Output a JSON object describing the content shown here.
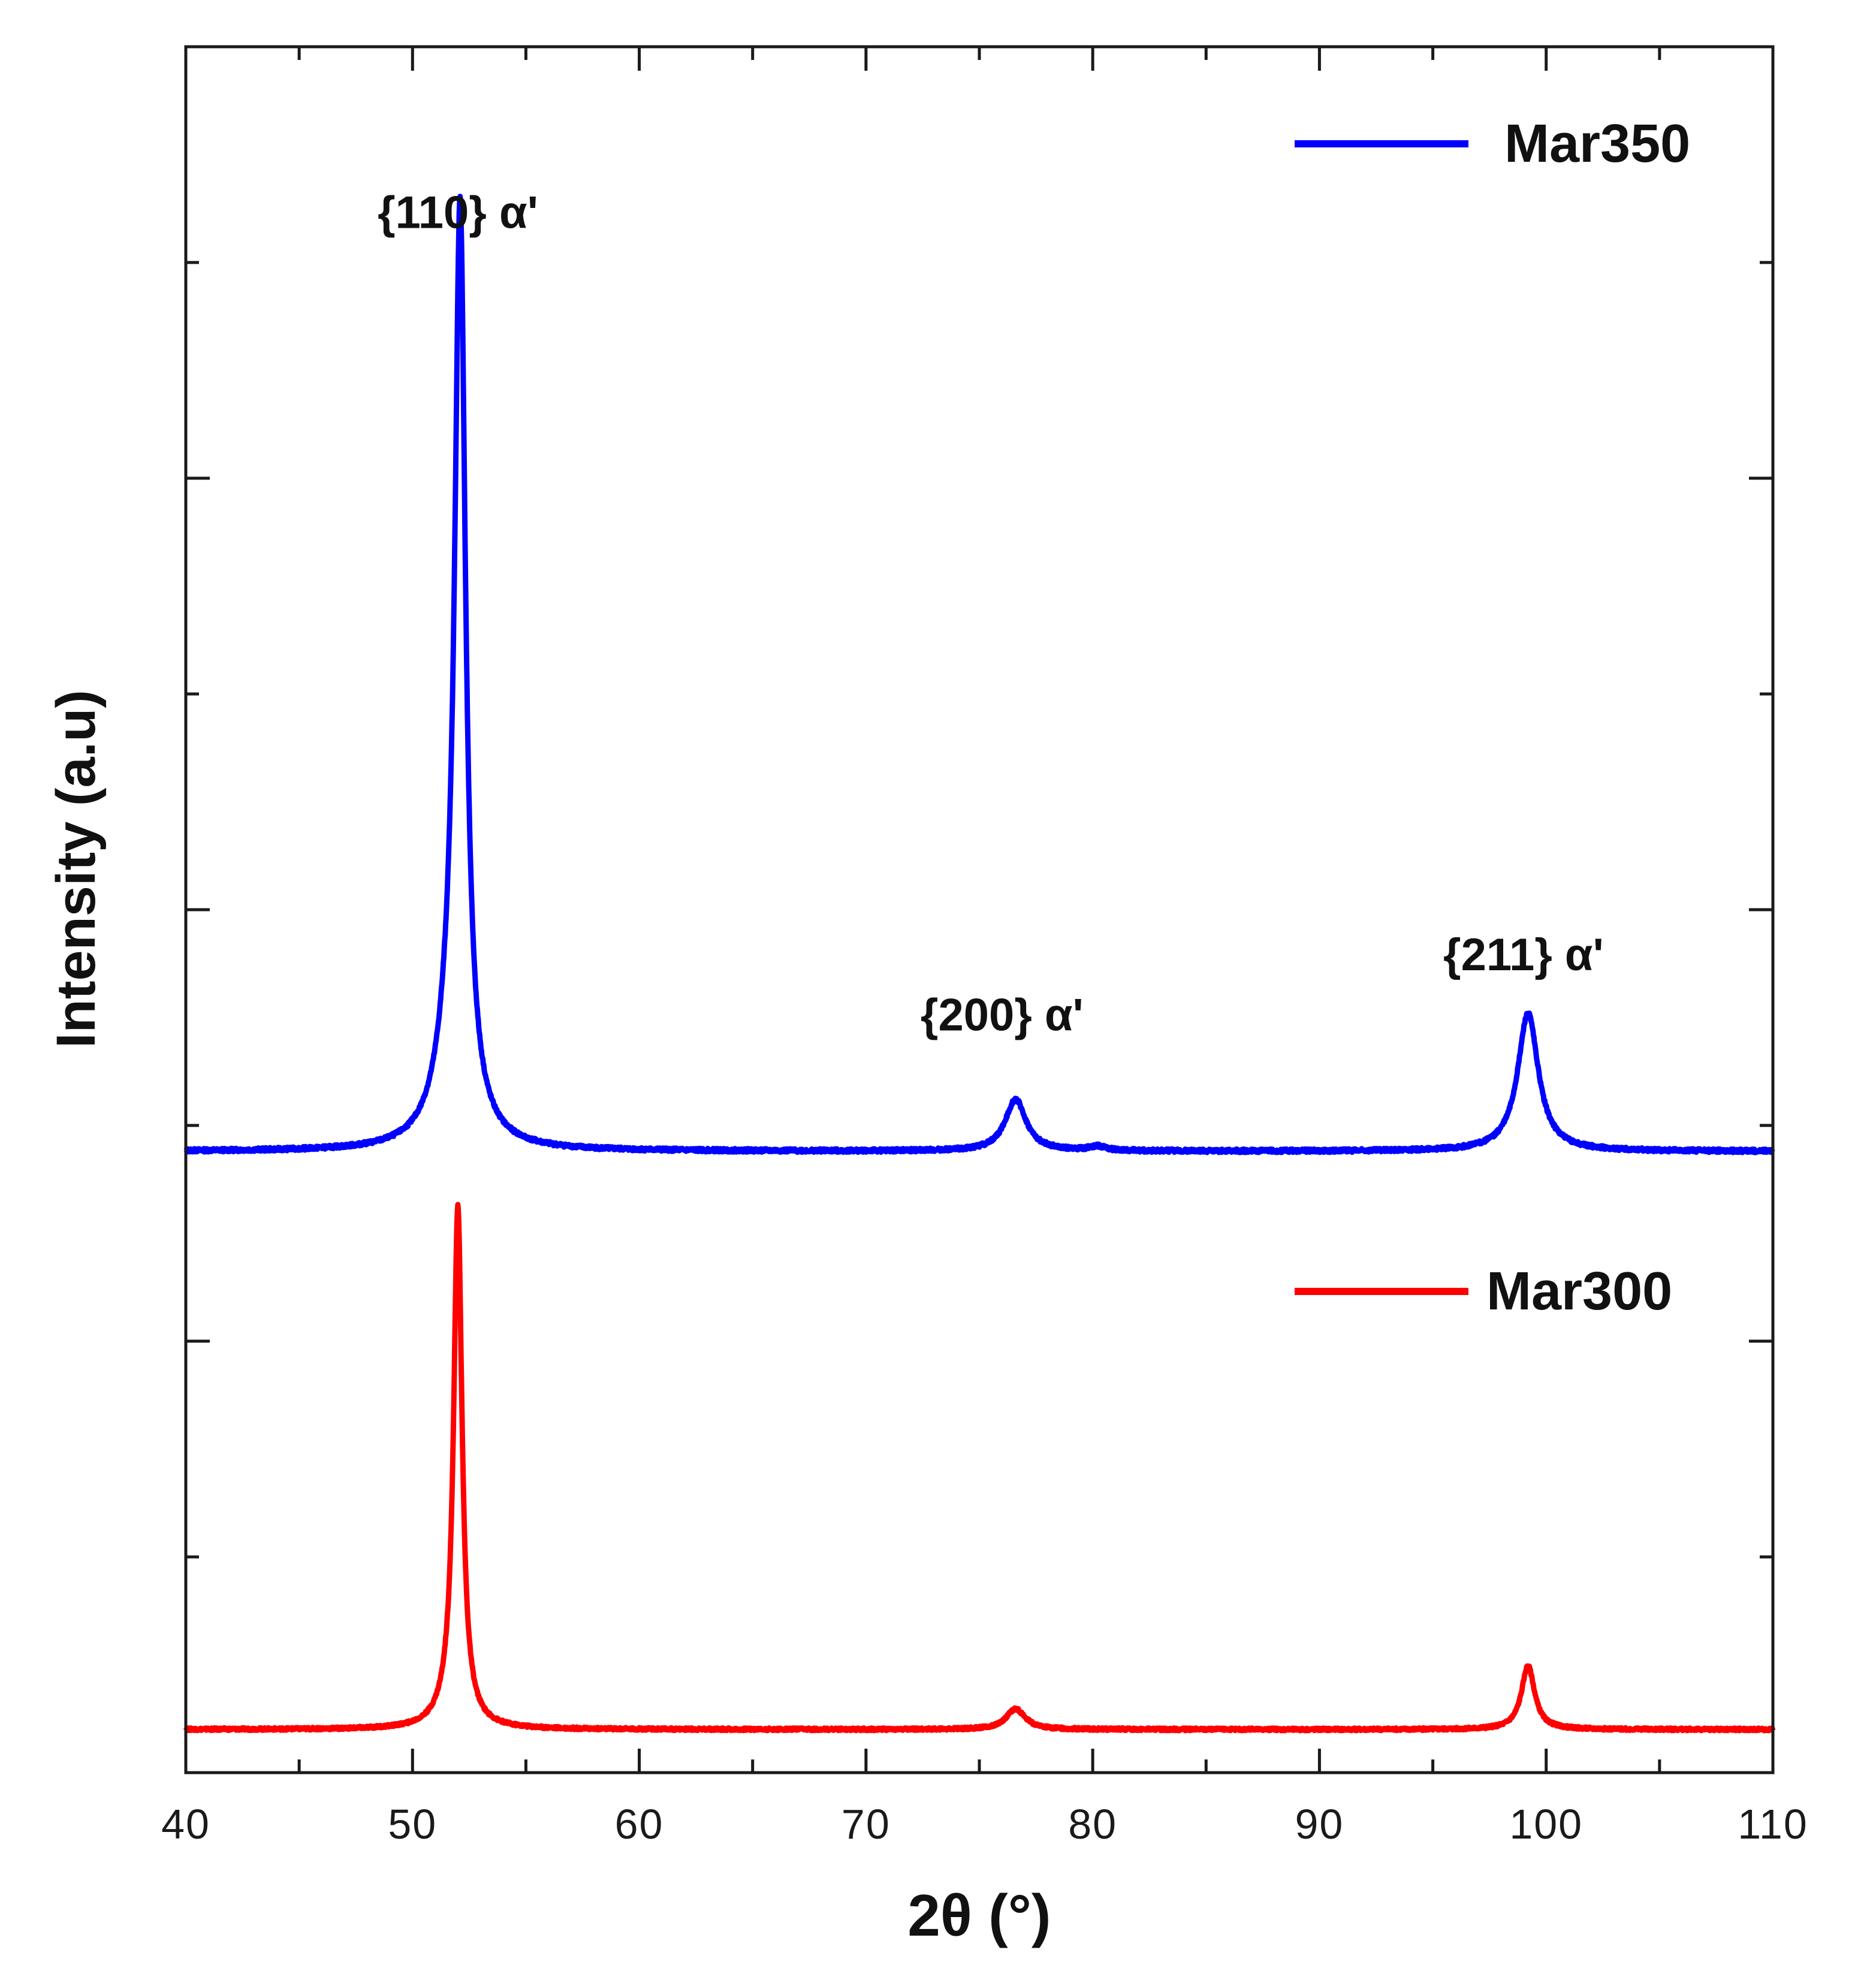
{
  "chart_data": {
    "type": "line",
    "title": "",
    "xlabel": "2θ (°)",
    "ylabel": "Intensity (a.u)",
    "xlim": [
      40,
      110
    ],
    "x_ticks": [
      40,
      50,
      60,
      70,
      80,
      90,
      100,
      110
    ],
    "y_tick_labels": "none",
    "ylim": [
      0,
      100
    ],
    "grid": false,
    "legend": [
      {
        "name": "Mar350",
        "color": "#0000ff",
        "placement": "top-right"
      },
      {
        "name": "Mar300",
        "color": "#ff0000",
        "placement": "middle-right"
      }
    ],
    "series": [
      {
        "name": "Mar350",
        "color": "#0000ff",
        "baseline": 36,
        "noise": 0.2,
        "peaks": [
          {
            "x": 52.1,
            "height": 50,
            "width": 0.28
          },
          {
            "x": 51.8,
            "height": 6,
            "width": 0.8
          },
          {
            "x": 76.6,
            "height": 3,
            "width": 0.55
          },
          {
            "x": 80.2,
            "height": 0.25,
            "width": 0.4
          },
          {
            "x": 99.2,
            "height": 8,
            "width": 0.55
          }
        ]
      },
      {
        "name": "Mar300",
        "color": "#ff0000",
        "baseline": 2.5,
        "noise": 0.15,
        "peaks": [
          {
            "x": 52.0,
            "height": 29,
            "width": 0.22
          },
          {
            "x": 51.8,
            "height": 1.5,
            "width": 0.6
          },
          {
            "x": 76.6,
            "height": 1.2,
            "width": 0.5
          },
          {
            "x": 99.2,
            "height": 3.7,
            "width": 0.35
          }
        ]
      }
    ],
    "annotations": [
      {
        "text": "{110} α'",
        "x": 52,
        "y": 89.5
      },
      {
        "text": "{200} α'",
        "x": 76,
        "y": 43
      },
      {
        "text": "{211} α'",
        "x": 99,
        "y": 46.5
      }
    ]
  }
}
